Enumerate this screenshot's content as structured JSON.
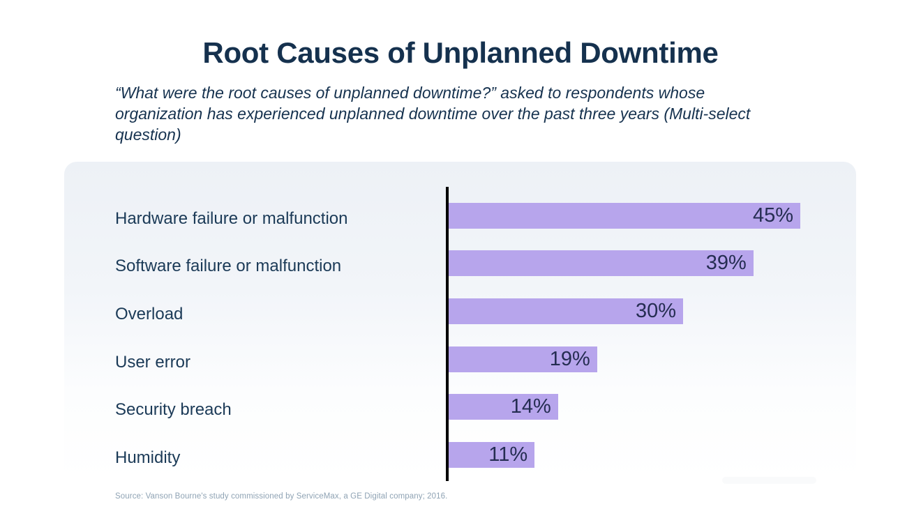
{
  "page": {
    "title": "Root Causes of Unplanned Downtime",
    "subtitle": "“What were the root causes of unplanned downtime?” asked to respondents whose organization has experienced unplanned downtime over the past three years (Multi-select question)",
    "source": "Source: Vanson Bourne's study commissioned by ServiceMax, a GE Digital company; 2016."
  },
  "chart_data": {
    "type": "bar",
    "orientation": "horizontal",
    "title": "Root Causes of Unplanned Downtime",
    "categories": [
      "Hardware failure or malfunction",
      "Software failure or malfunction",
      "Overload",
      "User error",
      "Security breach",
      "Humidity"
    ],
    "values": [
      45,
      39,
      30,
      19,
      14,
      11
    ],
    "value_labels": [
      "45%",
      "39%",
      "30%",
      "19%",
      "14%",
      "11%"
    ],
    "value_suffix": "%",
    "xlabel": "",
    "ylabel": "",
    "xlim": [
      0,
      52
    ],
    "grid": false,
    "legend": false,
    "value_label_position": "inside-end",
    "colors": {
      "bar": "#b7a5ec",
      "axis_line": "#000000",
      "title_text": "#15314e",
      "category_text": "#1b3a57",
      "value_text": "#252d52",
      "panel_top": "#edf1f6",
      "panel_bottom": "#ffffff",
      "source_text": "#8fa3b4"
    }
  }
}
